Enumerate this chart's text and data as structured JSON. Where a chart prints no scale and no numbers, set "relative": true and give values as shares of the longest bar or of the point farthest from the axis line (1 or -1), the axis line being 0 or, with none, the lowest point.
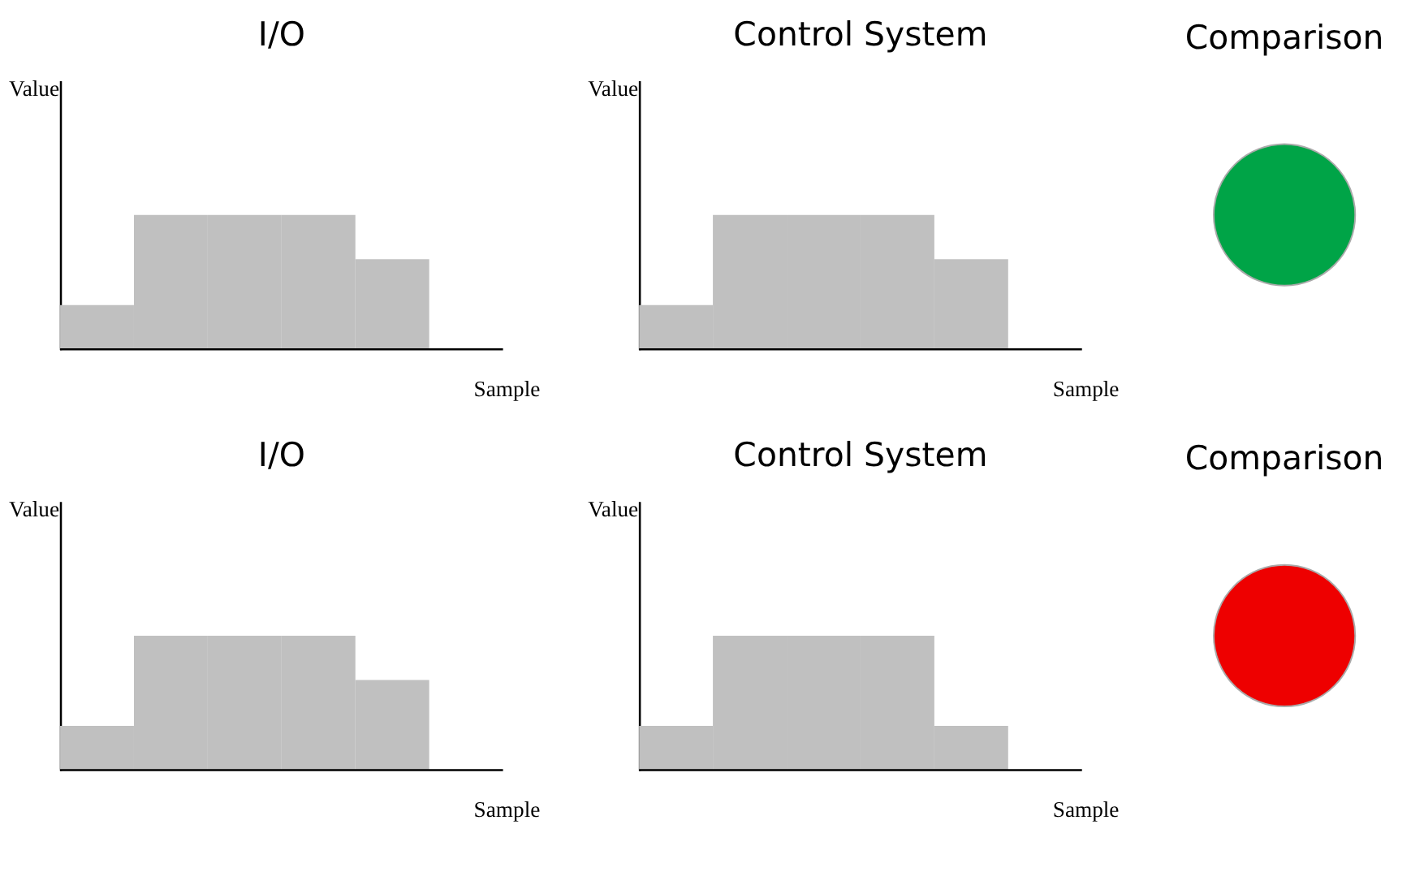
{
  "chart_data": [
    {
      "type": "bar",
      "title": "I/O",
      "xlabel": "Sample",
      "ylabel": "Value",
      "relative": true,
      "tick_labels": false,
      "grid": false,
      "categories": [
        null,
        null,
        null,
        null,
        null
      ],
      "values": [
        0.33,
        1,
        1,
        1,
        0.67
      ],
      "color": "#c0c0c0"
    },
    {
      "type": "bar",
      "title": "Control System",
      "xlabel": "Sample",
      "ylabel": "Value",
      "relative": true,
      "tick_labels": false,
      "grid": false,
      "categories": [
        null,
        null,
        null,
        null,
        null
      ],
      "values": [
        0.33,
        1,
        1,
        1,
        0.67
      ],
      "color": "#c0c0c0"
    },
    {
      "type": "other",
      "title": "Comparison",
      "colors": [
        "#00a447"
      ]
    },
    {
      "type": "bar",
      "title": "I/O",
      "xlabel": "Sample",
      "ylabel": "Value",
      "relative": true,
      "tick_labels": false,
      "grid": false,
      "categories": [
        null,
        null,
        null,
        null,
        null
      ],
      "values": [
        0.33,
        1,
        1,
        1,
        0.67
      ],
      "color": "#c0c0c0"
    },
    {
      "type": "bar",
      "title": "Control System",
      "xlabel": "Sample",
      "ylabel": "Value",
      "relative": true,
      "tick_labels": false,
      "grid": false,
      "categories": [
        null,
        null,
        null,
        null,
        null
      ],
      "values": [
        0.33,
        1,
        1,
        1,
        0.33
      ],
      "color": "#c0c0c0"
    },
    {
      "type": "other",
      "title": "Comparison",
      "colors": [
        "#ee0000"
      ]
    }
  ]
}
